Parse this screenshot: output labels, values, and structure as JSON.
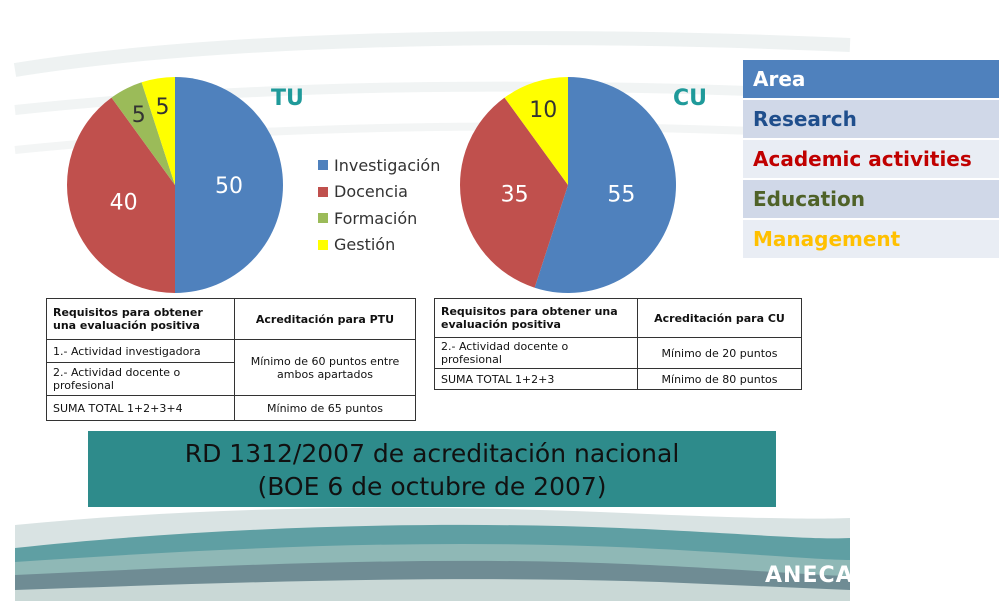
{
  "chart_data": [
    {
      "type": "pie",
      "title": "TU",
      "categories": [
        "Investigación",
        "Docencia",
        "Formación",
        "Gestión"
      ],
      "values": [
        50,
        40,
        5,
        5
      ],
      "colors": [
        "#4f81bd",
        "#c0504d",
        "#9bbb59",
        "#ffff00"
      ]
    },
    {
      "type": "pie",
      "title": "CU",
      "categories": [
        "Investigación",
        "Docencia",
        "Formación",
        "Gestión"
      ],
      "values": [
        55,
        35,
        0,
        10
      ],
      "colors": [
        "#4f81bd",
        "#c0504d",
        "#9bbb59",
        "#ffff00"
      ]
    }
  ],
  "legend": {
    "items": [
      {
        "label": "Investigación",
        "color": "#4f81bd"
      },
      {
        "label": "Docencia",
        "color": "#c0504d"
      },
      {
        "label": "Formación",
        "color": "#9bbb59"
      },
      {
        "label": "Gestión",
        "color": "#ffff00"
      }
    ]
  },
  "right_panel": {
    "header": "Area",
    "rows": [
      {
        "label": "Research",
        "color": "#1f4e8c"
      },
      {
        "label": "Academic activities",
        "color": "#c00000"
      },
      {
        "label": "Education",
        "color": "#4f6228"
      },
      {
        "label": "Management",
        "color": "#ffc000"
      }
    ]
  },
  "table_tu": {
    "header_req": "Requisitos para obtener una evaluación positiva",
    "header_acc": "Acreditación para PTU",
    "rows": [
      {
        "req": "1.- Actividad investigadora"
      },
      {
        "req": "2.- Actividad docente o profesional"
      },
      {
        "req": "SUMA TOTAL 1+2+3+4",
        "acc": "Mínimo de 65 puntos"
      }
    ],
    "merged_acc": "Mínimo de 60 puntos entre ambos apartados"
  },
  "table_cu": {
    "header_req": "Requisitos para obtener una evaluación positiva",
    "header_acc": "Acreditación para CU",
    "rows": [
      {
        "req": "2.- Actividad docente o profesional",
        "acc": "Mínimo de 20 puntos"
      },
      {
        "req": "SUMA TOTAL 1+2+3",
        "acc": "Mínimo de 80 puntos"
      }
    ]
  },
  "banner": {
    "line1": "RD 1312/2007 de acreditación nacional",
    "line2": "(BOE 6 de octubre de 2007)"
  },
  "logo_text": "ANECA"
}
